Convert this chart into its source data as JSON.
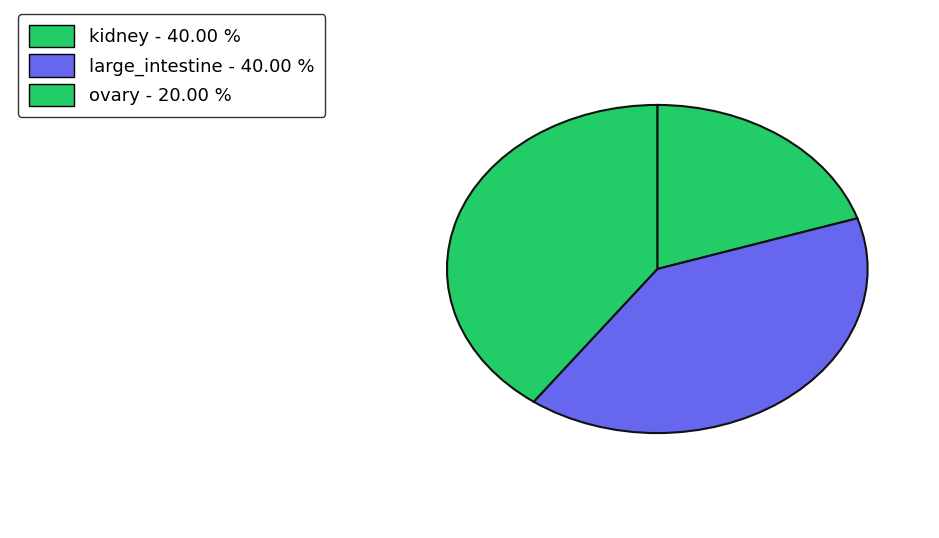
{
  "labels": [
    "ovary",
    "large_intestine",
    "kidney"
  ],
  "sizes": [
    20.0,
    40.0,
    40.0
  ],
  "colors": [
    "#22cc66",
    "#6666ee",
    "#22cc66"
  ],
  "legend_labels": [
    "kidney - 40.00 %",
    "large_intestine - 40.00 %",
    "ovary - 20.00 %"
  ],
  "legend_colors": [
    "#22cc66",
    "#6666ee",
    "#22cc66"
  ],
  "startangle": 90,
  "background_color": "#ffffff",
  "legend_fontsize": 13,
  "edge_color": "#111111",
  "edge_width": 1.5
}
